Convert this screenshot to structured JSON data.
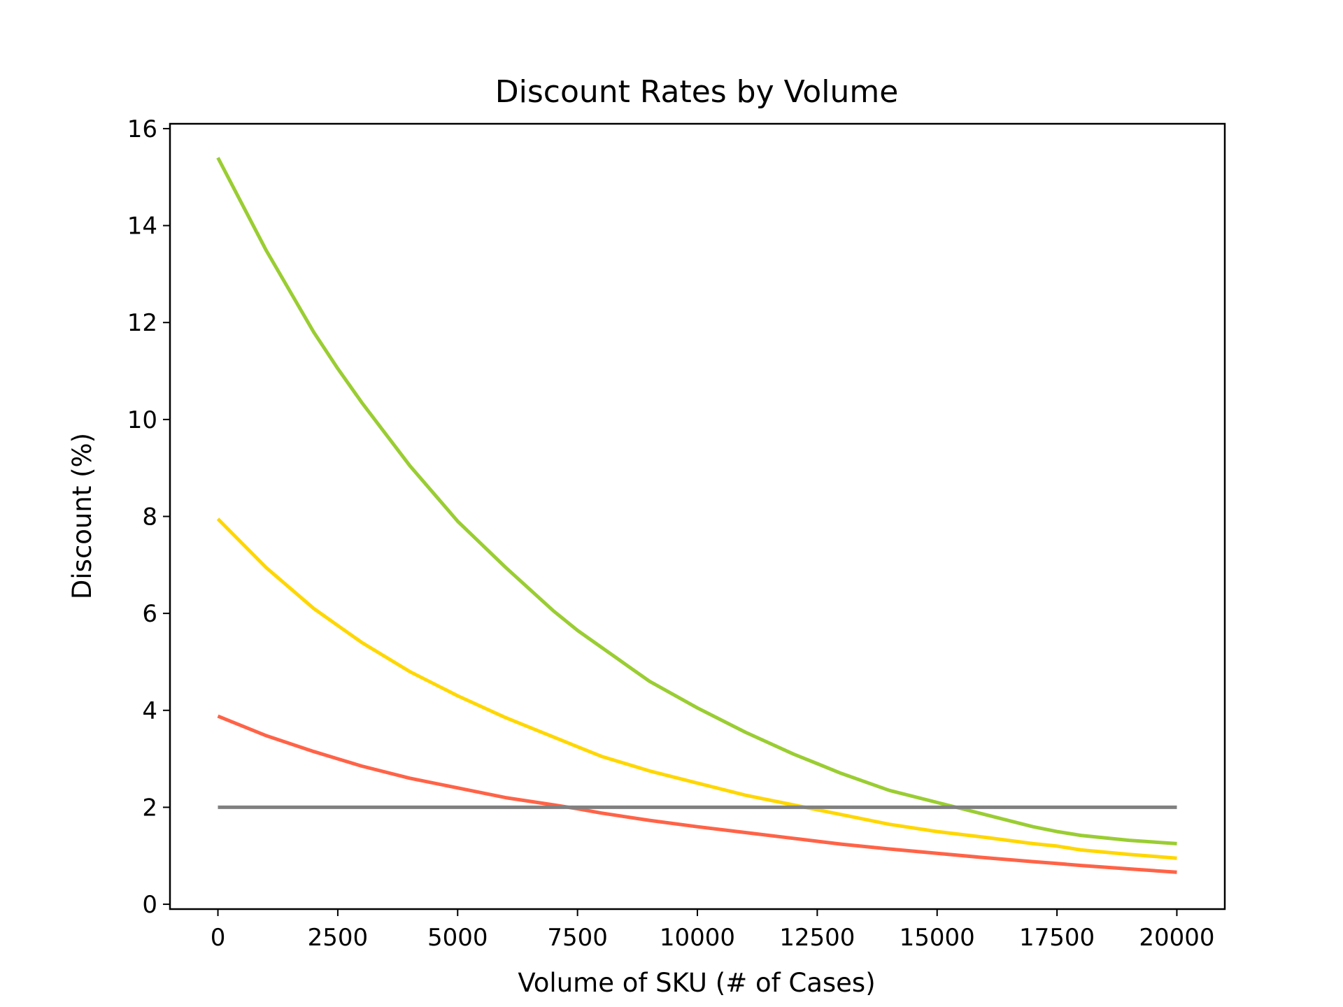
{
  "chart_data": {
    "type": "line",
    "title": "Discount Rates by Volume",
    "xlabel": "Volume of SKU (# of Cases)",
    "ylabel": "Discount (%)",
    "xlim": [
      -1000,
      21000
    ],
    "ylim": [
      -0.1,
      16.1
    ],
    "xticks": [
      0,
      2500,
      5000,
      7500,
      10000,
      12500,
      15000,
      17500,
      20000
    ],
    "yticks": [
      0,
      2,
      4,
      6,
      8,
      10,
      12,
      14,
      16
    ],
    "grid": false,
    "legend": "none",
    "series": [
      {
        "color": "#9acd32",
        "x": [
          0,
          1000,
          2000,
          2500,
          3000,
          4000,
          5000,
          6000,
          7000,
          7500,
          8000,
          9000,
          10000,
          11000,
          12000,
          12500,
          13000,
          14000,
          15000,
          16000,
          17000,
          17500,
          18000,
          19000,
          20000
        ],
        "y": [
          15.4,
          13.5,
          11.8,
          11.05,
          10.35,
          9.05,
          7.9,
          6.95,
          6.05,
          5.65,
          5.3,
          4.6,
          4.05,
          3.55,
          3.1,
          2.9,
          2.7,
          2.35,
          2.1,
          1.85,
          1.6,
          1.5,
          1.42,
          1.32,
          1.25
        ]
      },
      {
        "color": "#ffd700",
        "x": [
          0,
          1000,
          2000,
          2500,
          3000,
          4000,
          5000,
          6000,
          7000,
          7500,
          8000,
          9000,
          10000,
          11000,
          12000,
          12500,
          13000,
          14000,
          15000,
          16000,
          17000,
          17500,
          18000,
          19000,
          20000
        ],
        "y": [
          7.95,
          6.95,
          6.1,
          5.75,
          5.4,
          4.8,
          4.3,
          3.85,
          3.45,
          3.25,
          3.05,
          2.75,
          2.5,
          2.25,
          2.05,
          1.95,
          1.85,
          1.65,
          1.5,
          1.38,
          1.25,
          1.2,
          1.12,
          1.03,
          0.95
        ]
      },
      {
        "color": "#ff6347",
        "x": [
          0,
          1000,
          2000,
          2500,
          3000,
          4000,
          5000,
          6000,
          7000,
          7500,
          8000,
          9000,
          10000,
          11000,
          12000,
          12500,
          13000,
          14000,
          15000,
          16000,
          17000,
          17500,
          18000,
          19000,
          20000
        ],
        "y": [
          3.88,
          3.48,
          3.15,
          3.0,
          2.85,
          2.6,
          2.4,
          2.2,
          2.05,
          1.97,
          1.88,
          1.73,
          1.6,
          1.48,
          1.36,
          1.3,
          1.24,
          1.14,
          1.05,
          0.96,
          0.88,
          0.84,
          0.8,
          0.73,
          0.66
        ]
      },
      {
        "color": "#808080",
        "x": [
          0,
          20000
        ],
        "y": [
          2,
          2
        ]
      }
    ]
  }
}
